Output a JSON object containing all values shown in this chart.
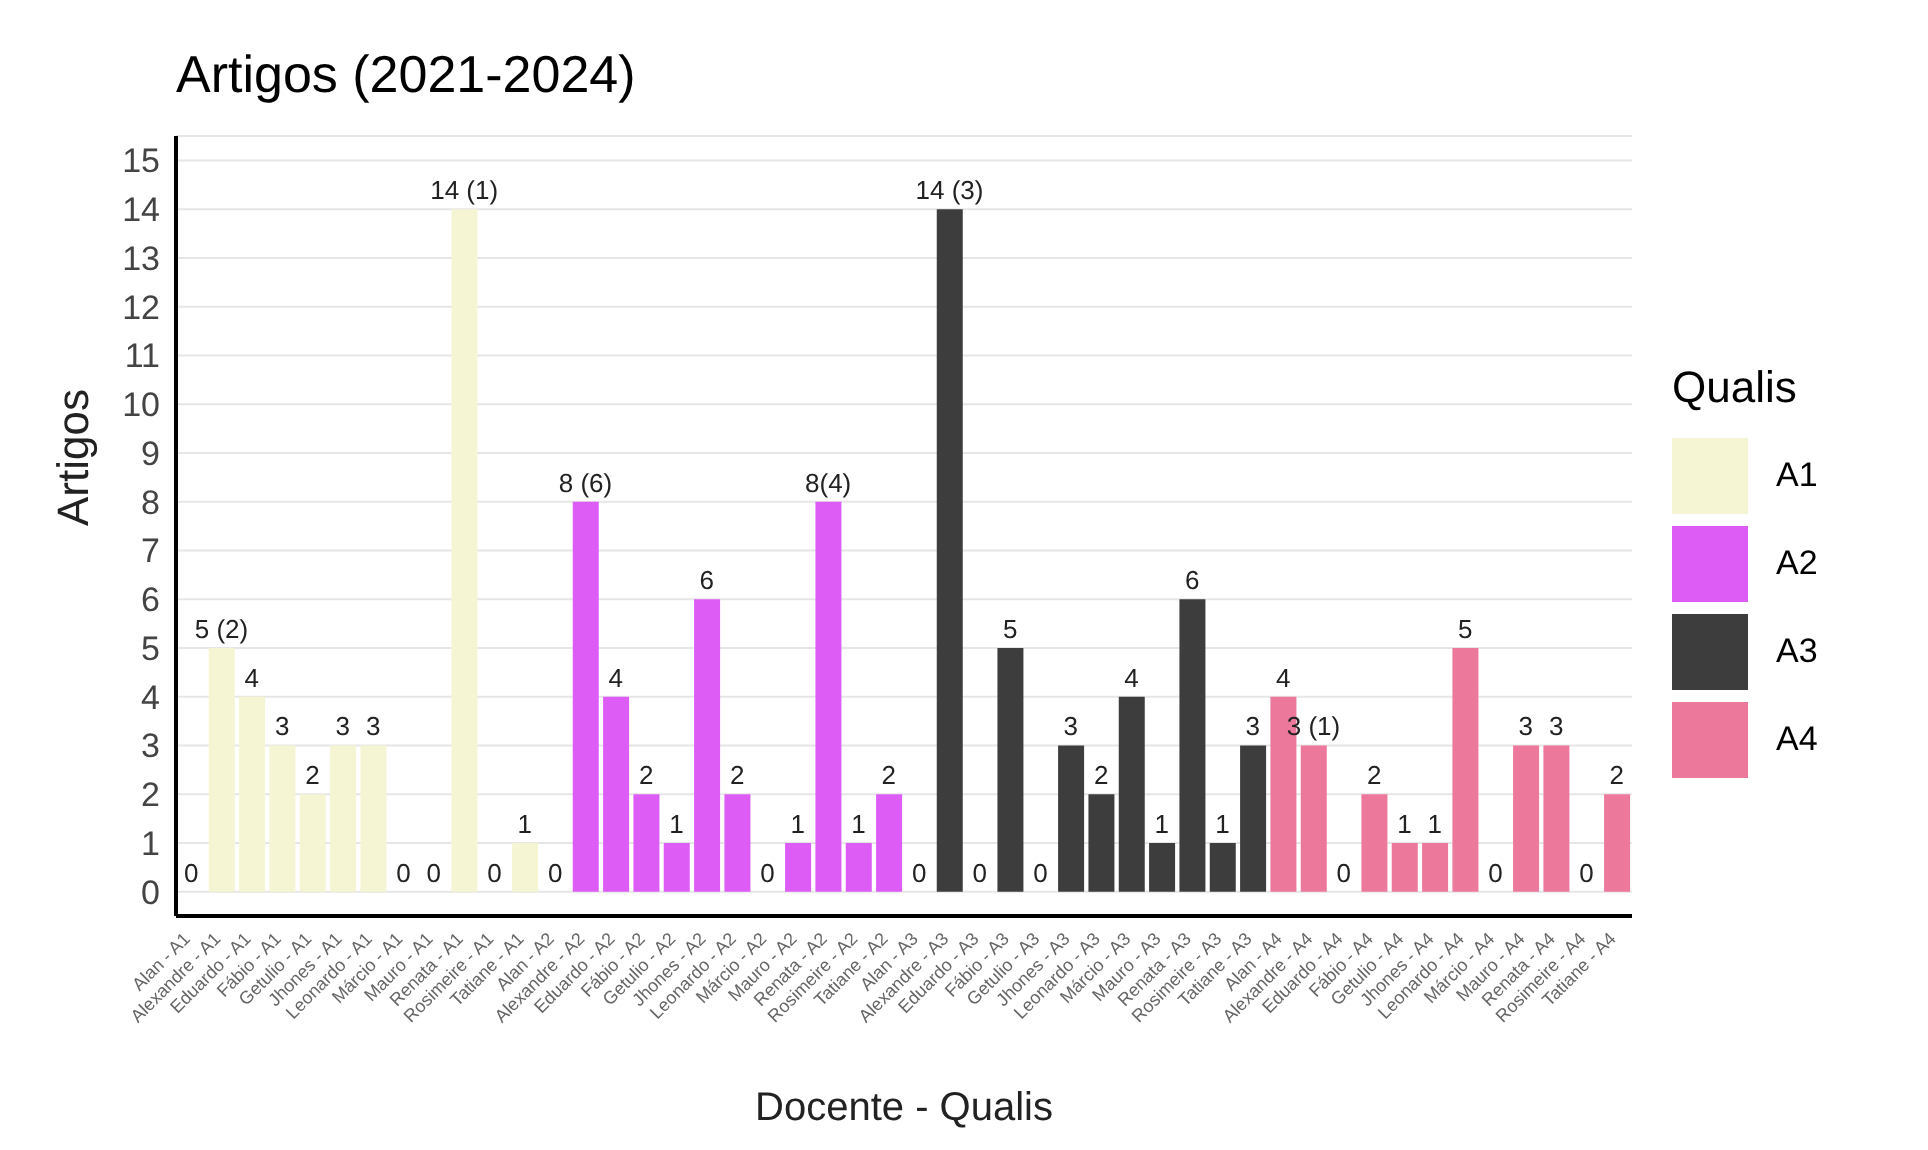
{
  "chart_data": {
    "type": "bar",
    "title": "Artigos (2021-2024)",
    "xlabel": "Docente - Qualis",
    "ylabel": "Artigos",
    "legend_title": "Qualis",
    "categories": [
      "Alan - A1",
      "Alexandre - A1",
      "Eduardo - A1",
      "Fábio - A1",
      "Getulio - A1",
      "Jhones - A1",
      "Leonardo - A1",
      "Márcio - A1",
      "Mauro - A1",
      "Renata - A1",
      "Rosimeire - A1",
      "Tatiane - A1",
      "Alan - A2",
      "Alexandre - A2",
      "Eduardo - A2",
      "Fábio - A2",
      "Getulio - A2",
      "Jhones - A2",
      "Leonardo - A2",
      "Márcio - A2",
      "Mauro - A2",
      "Renata - A2",
      "Rosimeire - A2",
      "Tatiane - A2",
      "Alan - A3",
      "Alexandre - A3",
      "Eduardo - A3",
      "Fábio - A3",
      "Getulio - A3",
      "Jhones - A3",
      "Leonardo - A3",
      "Márcio - A3",
      "Mauro - A3",
      "Renata - A3",
      "Rosimeire - A3",
      "Tatiane - A3",
      "Alan - A4",
      "Alexandre - A4",
      "Eduardo - A4",
      "Fábio - A4",
      "Getulio - A4",
      "Jhones - A4",
      "Leonardo - A4",
      "Márcio - A4",
      "Mauro - A4",
      "Renata - A4",
      "Rosimeire - A4",
      "Tatiane - A4"
    ],
    "series": [
      {
        "name": "A1",
        "color": "#f5f5d3",
        "values": [
          0,
          5,
          4,
          3,
          2,
          3,
          3,
          0,
          0,
          14,
          0,
          1,
          null,
          null,
          null,
          null,
          null,
          null,
          null,
          null,
          null,
          null,
          null,
          null,
          null,
          null,
          null,
          null,
          null,
          null,
          null,
          null,
          null,
          null,
          null,
          null,
          null,
          null,
          null,
          null,
          null,
          null,
          null,
          null,
          null,
          null,
          null,
          null
        ],
        "value_labels": [
          "0",
          "5 (2)",
          "4",
          "3",
          "2",
          "3",
          "3",
          "0",
          "0",
          "14 (1)",
          "0",
          "1",
          null,
          null,
          null,
          null,
          null,
          null,
          null,
          null,
          null,
          null,
          null,
          null,
          null,
          null,
          null,
          null,
          null,
          null,
          null,
          null,
          null,
          null,
          null,
          null,
          null,
          null,
          null,
          null,
          null,
          null,
          null,
          null,
          null,
          null,
          null,
          null
        ]
      },
      {
        "name": "A2",
        "color": "#dc5cf5",
        "values": [
          null,
          null,
          null,
          null,
          null,
          null,
          null,
          null,
          null,
          null,
          null,
          null,
          0,
          8,
          4,
          2,
          1,
          6,
          2,
          0,
          1,
          8,
          1,
          2,
          null,
          null,
          null,
          null,
          null,
          null,
          null,
          null,
          null,
          null,
          null,
          null,
          null,
          null,
          null,
          null,
          null,
          null,
          null,
          null,
          null,
          null,
          null,
          null
        ],
        "value_labels": [
          null,
          null,
          null,
          null,
          null,
          null,
          null,
          null,
          null,
          null,
          null,
          null,
          "0",
          "8 (6)",
          "4",
          "2",
          "1",
          "6",
          "2",
          "0",
          "1",
          "8(4)",
          "1",
          "2",
          null,
          null,
          null,
          null,
          null,
          null,
          null,
          null,
          null,
          null,
          null,
          null,
          null,
          null,
          null,
          null,
          null,
          null,
          null,
          null,
          null,
          null,
          null,
          null
        ]
      },
      {
        "name": "A3",
        "color": "#3d3d3d",
        "values": [
          null,
          null,
          null,
          null,
          null,
          null,
          null,
          null,
          null,
          null,
          null,
          null,
          null,
          null,
          null,
          null,
          null,
          null,
          null,
          null,
          null,
          null,
          null,
          null,
          0,
          14,
          0,
          5,
          0,
          3,
          2,
          4,
          1,
          6,
          1,
          3,
          null,
          null,
          null,
          null,
          null,
          null,
          null,
          null,
          null,
          null,
          null,
          null
        ],
        "value_labels": [
          null,
          null,
          null,
          null,
          null,
          null,
          null,
          null,
          null,
          null,
          null,
          null,
          null,
          null,
          null,
          null,
          null,
          null,
          null,
          null,
          null,
          null,
          null,
          null,
          "0",
          "14 (3)",
          "0",
          "5",
          "0",
          "3",
          "2",
          "4",
          "1",
          "6",
          "1",
          "3",
          null,
          null,
          null,
          null,
          null,
          null,
          null,
          null,
          null,
          null,
          null,
          null
        ]
      },
      {
        "name": "A4",
        "color": "#ec789c",
        "values": [
          null,
          null,
          null,
          null,
          null,
          null,
          null,
          null,
          null,
          null,
          null,
          null,
          null,
          null,
          null,
          null,
          null,
          null,
          null,
          null,
          null,
          null,
          null,
          null,
          null,
          null,
          null,
          null,
          null,
          null,
          null,
          null,
          null,
          null,
          null,
          null,
          4,
          3,
          0,
          2,
          1,
          1,
          5,
          0,
          3,
          3,
          0,
          2
        ],
        "value_labels": [
          null,
          null,
          null,
          null,
          null,
          null,
          null,
          null,
          null,
          null,
          null,
          null,
          null,
          null,
          null,
          null,
          null,
          null,
          null,
          null,
          null,
          null,
          null,
          null,
          null,
          null,
          null,
          null,
          null,
          null,
          null,
          null,
          null,
          null,
          null,
          null,
          "4",
          "3 (1)",
          "0",
          "2",
          "1",
          "1",
          "5",
          "0",
          "3",
          "3",
          "0",
          "2"
        ]
      }
    ],
    "ylim": [
      -0.5,
      15.5
    ],
    "yticks": [
      0,
      1,
      2,
      3,
      4,
      5,
      6,
      7,
      8,
      9,
      10,
      11,
      12,
      13,
      14,
      15
    ],
    "grid": "y",
    "legend": "right"
  }
}
